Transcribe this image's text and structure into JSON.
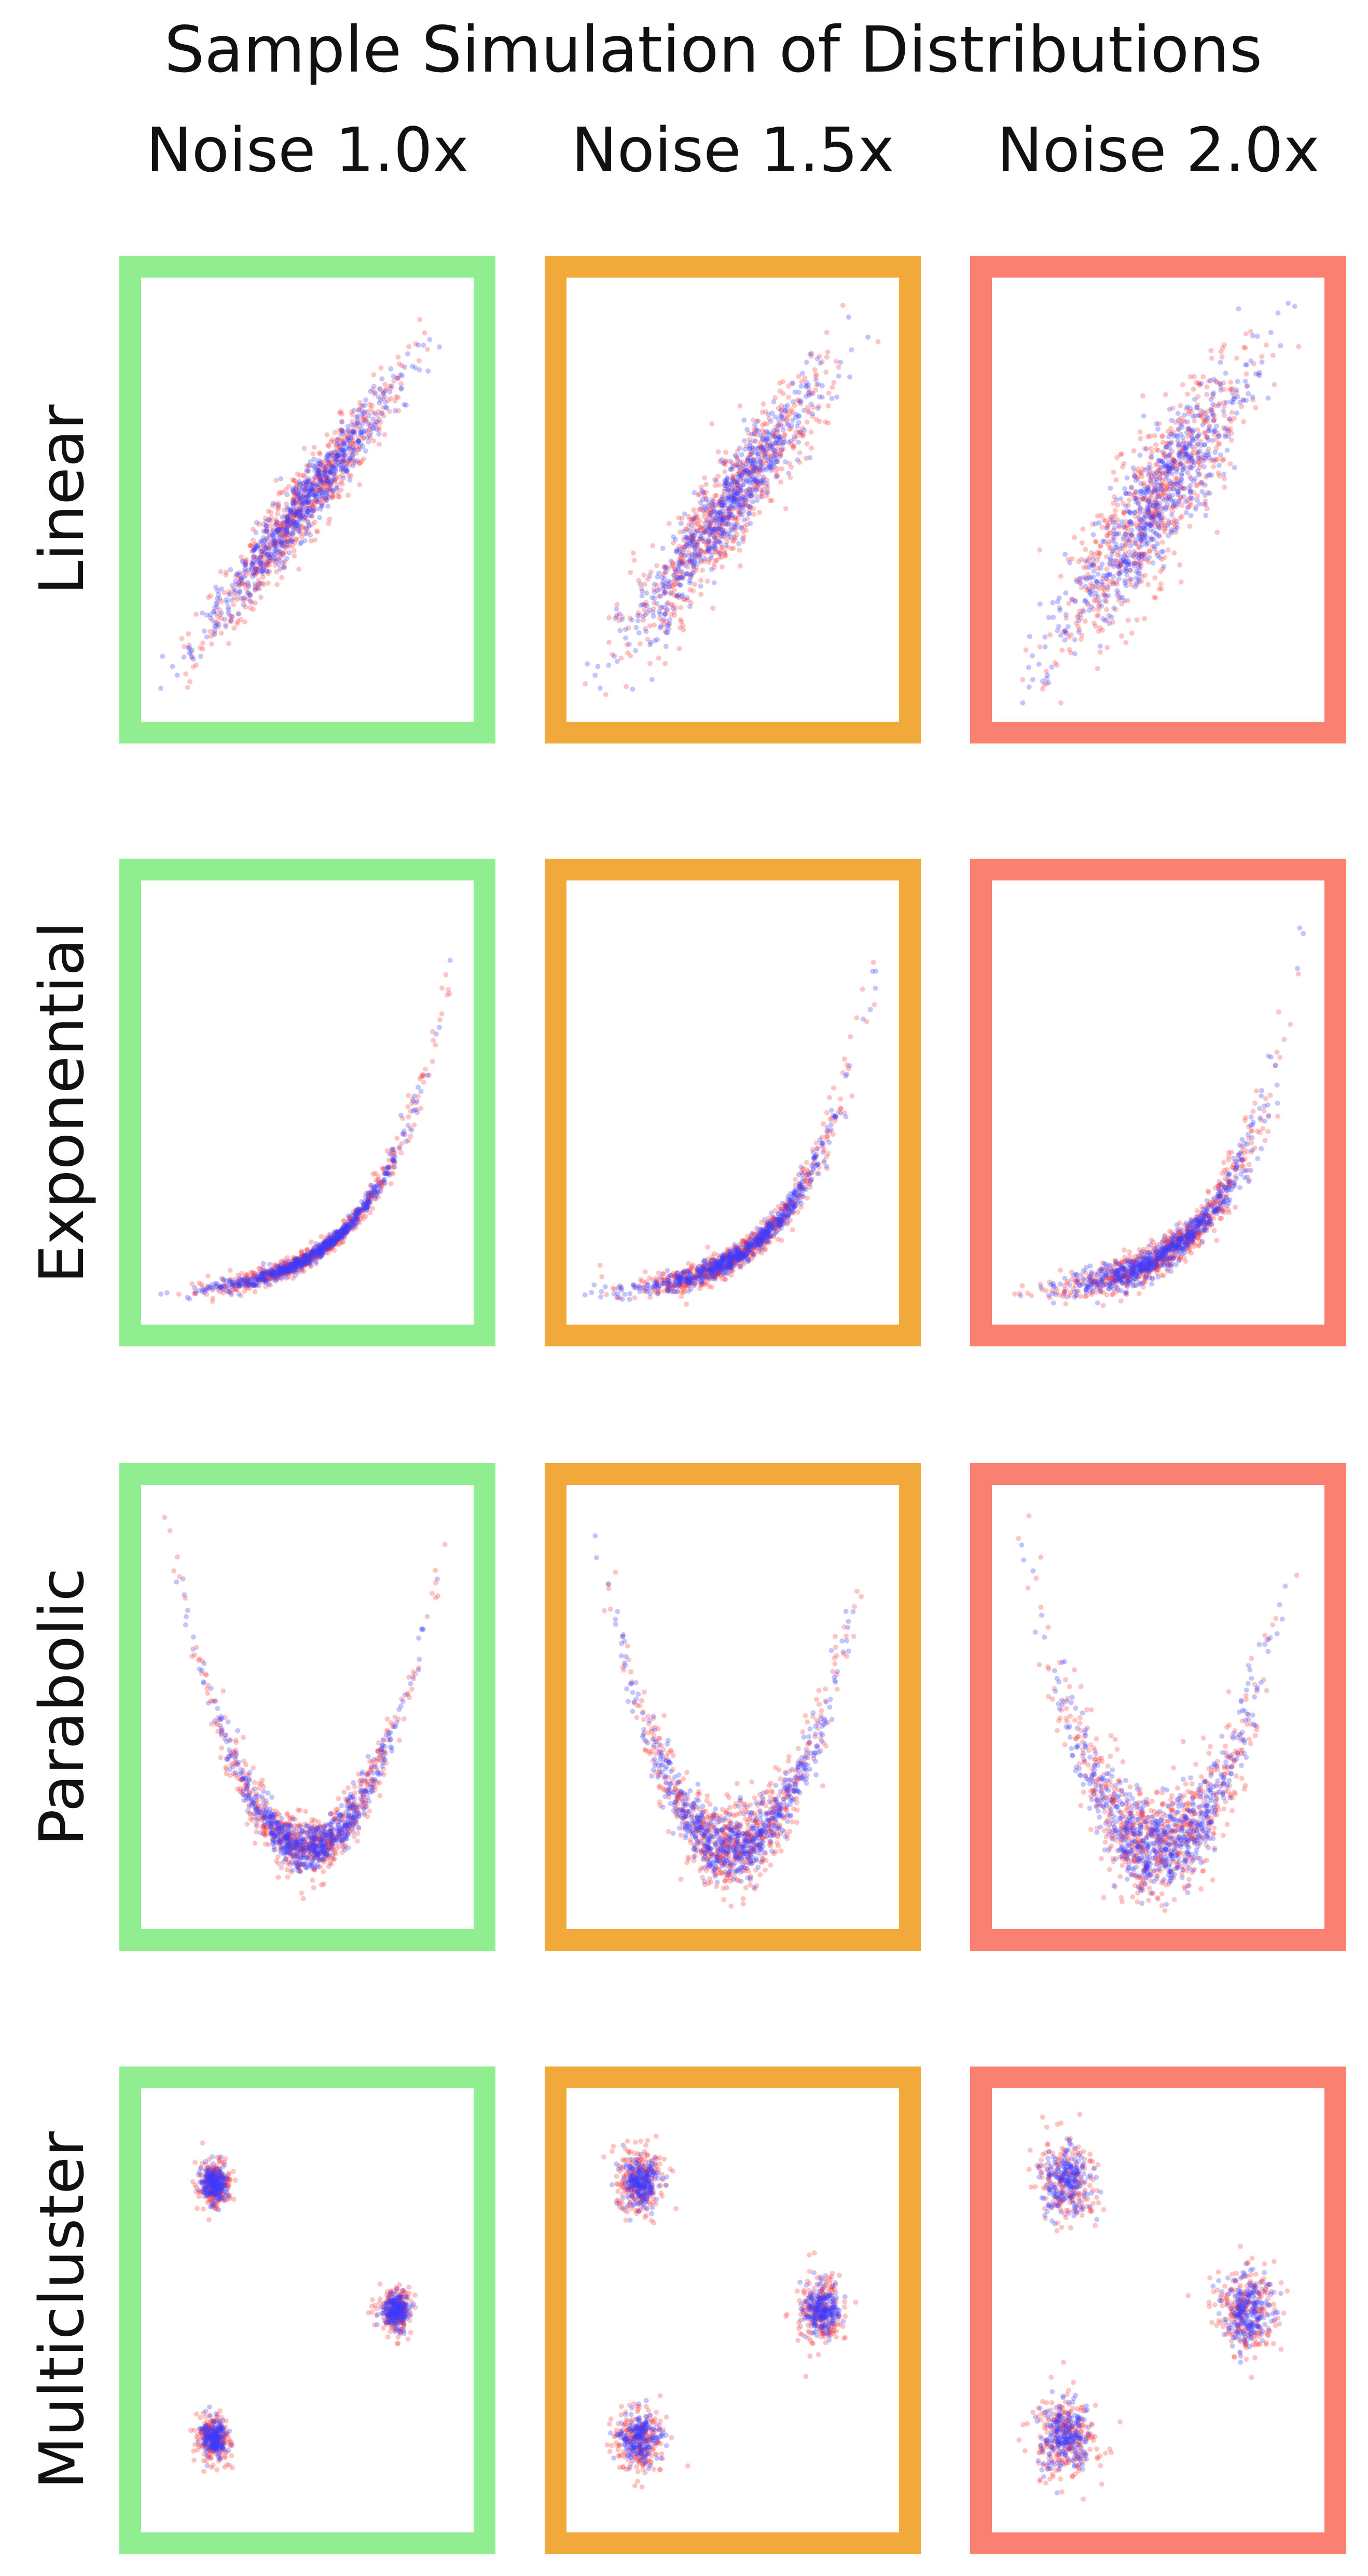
{
  "figure": {
    "title": "Sample Simulation of Distributions",
    "columns": [
      "Noise 1.0x",
      "Noise 1.5x",
      "Noise 2.0x"
    ],
    "rows": [
      "Linear",
      "Exponential",
      "Parabolic",
      "Multicluster"
    ],
    "frame_colors": [
      "#90ee90",
      "#f2a93b",
      "#fa8072"
    ],
    "point_colors": {
      "red": "#ff3030",
      "blue": "#3a3aff"
    }
  },
  "chart_data": {
    "type": "scatter",
    "title": "Sample Simulation of Distributions",
    "grid": false,
    "axes_visible": false,
    "layout": "4 rows x 3 columns",
    "column_labels": [
      "Noise 1.0x",
      "Noise 1.5x",
      "Noise 2.0x"
    ],
    "row_labels": [
      "Linear",
      "Exponential",
      "Parabolic",
      "Multicluster"
    ],
    "noise_multipliers": [
      1.0,
      1.5,
      2.0
    ],
    "series": [
      {
        "color": "red",
        "hex": "#ff3030"
      },
      {
        "color": "blue",
        "hex": "#3a3aff"
      }
    ],
    "distributions": [
      {
        "row": "Linear",
        "form": "y = x",
        "x_range": [
          -3,
          3.2
        ],
        "y_range": [
          -3.2,
          3.4
        ],
        "base_spread": 0.32
      },
      {
        "row": "Exponential",
        "form": "y = exp(x)",
        "x_range": [
          -2.3,
          2.1
        ],
        "y_range": [
          -0.2,
          9.2
        ],
        "base_spread": 0.18
      },
      {
        "row": "Parabolic",
        "form": "y = x^2",
        "x_range": [
          -2.6,
          2.6
        ],
        "y_range": [
          -1.2,
          6.6
        ],
        "base_spread": 0.28
      },
      {
        "row": "Multicluster",
        "form": "3 gaussian clusters",
        "cluster_centers": [
          [
            -2.0,
            2.0
          ],
          [
            2.0,
            0.0
          ],
          [
            -2.0,
            -2.0
          ]
        ],
        "x_range": [
          -3.2,
          3.3
        ],
        "y_range": [
          -3.2,
          3.2
        ],
        "base_spread": 0.18
      }
    ],
    "points_per_series": 650
  }
}
